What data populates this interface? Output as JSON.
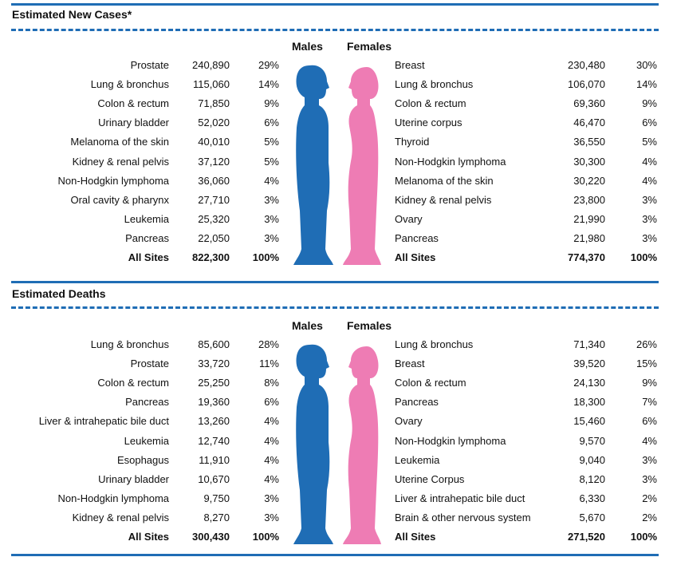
{
  "sections": [
    {
      "title": "Estimated New Cases*",
      "males_label": "Males",
      "females_label": "Females",
      "males": [
        [
          "Prostate",
          "240,890",
          "29%"
        ],
        [
          "Lung & bronchus",
          "115,060",
          "14%"
        ],
        [
          "Colon & rectum",
          "71,850",
          "9%"
        ],
        [
          "Urinary bladder",
          "52,020",
          "6%"
        ],
        [
          "Melanoma of the skin",
          "40,010",
          "5%"
        ],
        [
          "Kidney & renal pelvis",
          "37,120",
          "5%"
        ],
        [
          "Non-Hodgkin lymphoma",
          "36,060",
          "4%"
        ],
        [
          "Oral cavity & pharynx",
          "27,710",
          "3%"
        ],
        [
          "Leukemia",
          "25,320",
          "3%"
        ],
        [
          "Pancreas",
          "22,050",
          "3%"
        ]
      ],
      "males_total": [
        "All Sites",
        "822,300",
        "100%"
      ],
      "females": [
        [
          "Breast",
          "230,480",
          "30%"
        ],
        [
          "Lung & bronchus",
          "106,070",
          "14%"
        ],
        [
          "Colon & rectum",
          "69,360",
          "9%"
        ],
        [
          "Uterine corpus",
          "46,470",
          "6%"
        ],
        [
          "Thyroid",
          "36,550",
          "5%"
        ],
        [
          "Non-Hodgkin lymphoma",
          "30,300",
          "4%"
        ],
        [
          "Melanoma of the skin",
          "30,220",
          "4%"
        ],
        [
          "Kidney & renal pelvis",
          "23,800",
          "3%"
        ],
        [
          "Ovary",
          "21,990",
          "3%"
        ],
        [
          "Pancreas",
          "21,980",
          "3%"
        ]
      ],
      "females_total": [
        "All Sites",
        "774,370",
        "100%"
      ]
    },
    {
      "title": "Estimated Deaths",
      "males_label": "Males",
      "females_label": "Females",
      "males": [
        [
          "Lung & bronchus",
          "85,600",
          "28%"
        ],
        [
          "Prostate",
          "33,720",
          "11%"
        ],
        [
          "Colon & rectum",
          "25,250",
          "8%"
        ],
        [
          "Pancreas",
          "19,360",
          "6%"
        ],
        [
          "Liver & intrahepatic bile duct",
          "13,260",
          "4%"
        ],
        [
          "Leukemia",
          "12,740",
          "4%"
        ],
        [
          "Esophagus",
          "11,910",
          "4%"
        ],
        [
          "Urinary bladder",
          "10,670",
          "4%"
        ],
        [
          "Non-Hodgkin lymphoma",
          "9,750",
          "3%"
        ],
        [
          "Kidney & renal pelvis",
          "8,270",
          "3%"
        ]
      ],
      "males_total": [
        "All Sites",
        "300,430",
        "100%"
      ],
      "females": [
        [
          "Lung & bronchus",
          "71,340",
          "26%"
        ],
        [
          "Breast",
          "39,520",
          "15%"
        ],
        [
          "Colon & rectum",
          "24,130",
          "9%"
        ],
        [
          "Pancreas",
          "18,300",
          "7%"
        ],
        [
          "Ovary",
          "15,460",
          "6%"
        ],
        [
          "Non-Hodgkin lymphoma",
          "9,570",
          "4%"
        ],
        [
          "Leukemia",
          "9,040",
          "3%"
        ],
        [
          "Uterine Corpus",
          "8,120",
          "3%"
        ],
        [
          "Liver & intrahepatic bile duct",
          "6,330",
          "2%"
        ],
        [
          "Brain & other nervous system",
          "5,670",
          "2%"
        ]
      ],
      "females_total": [
        "All Sites",
        "271,520",
        "100%"
      ]
    }
  ]
}
